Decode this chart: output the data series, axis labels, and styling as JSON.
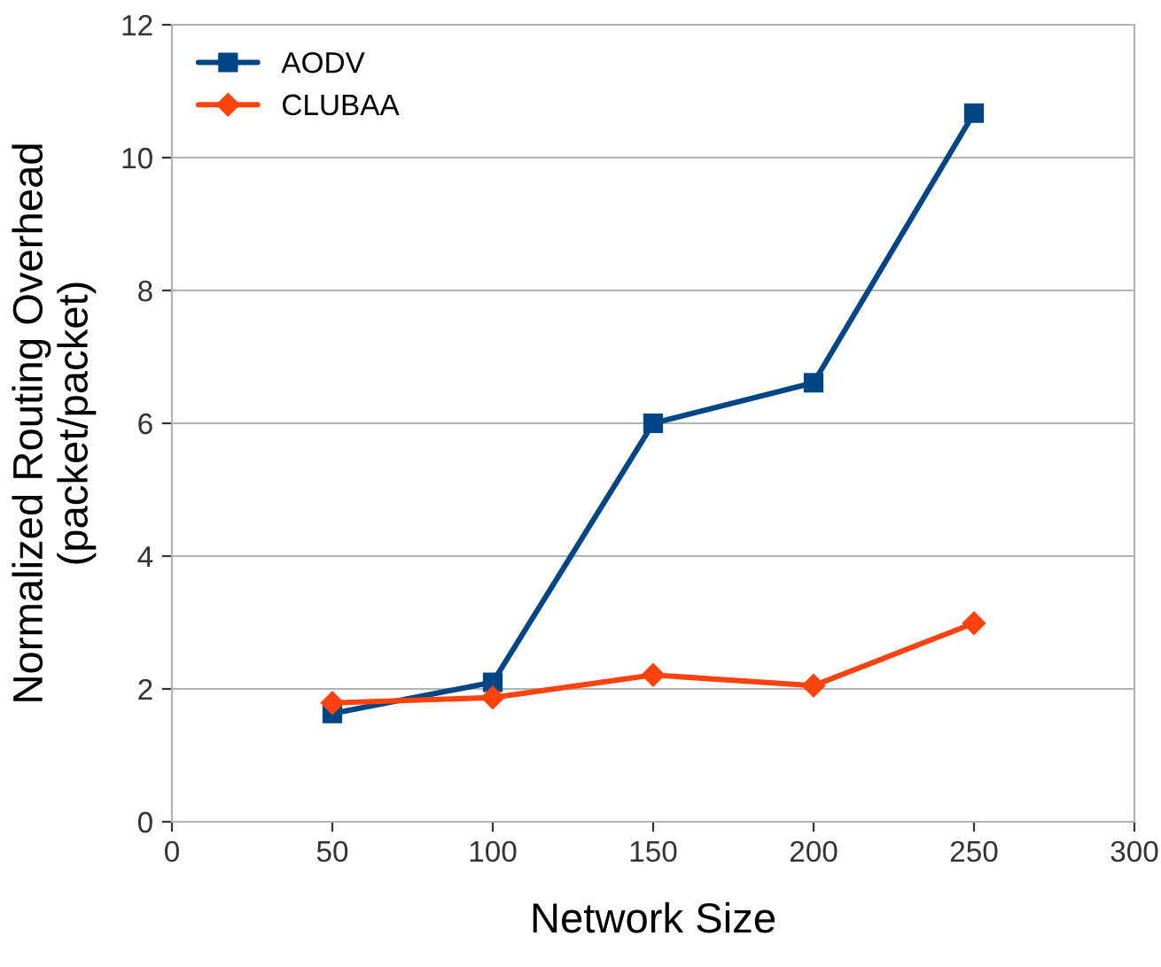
{
  "chart_data": {
    "type": "line",
    "xlabel": "Network Size",
    "ylabel": "Normalized Routing Overhead\n(packet/packet)",
    "x": [
      50,
      100,
      150,
      200,
      250
    ],
    "series": [
      {
        "name": "AODV",
        "color": "#004586",
        "marker": "square",
        "values": [
          1.63,
          2.1,
          6.0,
          6.61,
          10.67
        ]
      },
      {
        "name": "CLUBAA",
        "color": "#ff420e",
        "marker": "diamond",
        "values": [
          1.79,
          1.87,
          2.21,
          2.05,
          2.99
        ]
      }
    ],
    "xlim": [
      0,
      300
    ],
    "xticks": [
      0,
      50,
      100,
      150,
      200,
      250,
      300
    ],
    "ylim": [
      0,
      12
    ],
    "yticks": [
      0,
      2,
      4,
      6,
      8,
      10,
      12
    ],
    "grid": "y",
    "legend": "top left",
    "line_style": "solid"
  }
}
